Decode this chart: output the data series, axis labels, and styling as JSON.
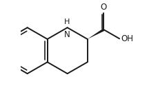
{
  "bg_color": "#ffffff",
  "line_color": "#1a1a1a",
  "line_width": 1.4,
  "font_size": 8.5,
  "figsize": [
    2.3,
    1.34
  ],
  "dpi": 100,
  "xlim": [
    -0.3,
    4.8
  ],
  "ylim": [
    -1.8,
    2.2
  ]
}
